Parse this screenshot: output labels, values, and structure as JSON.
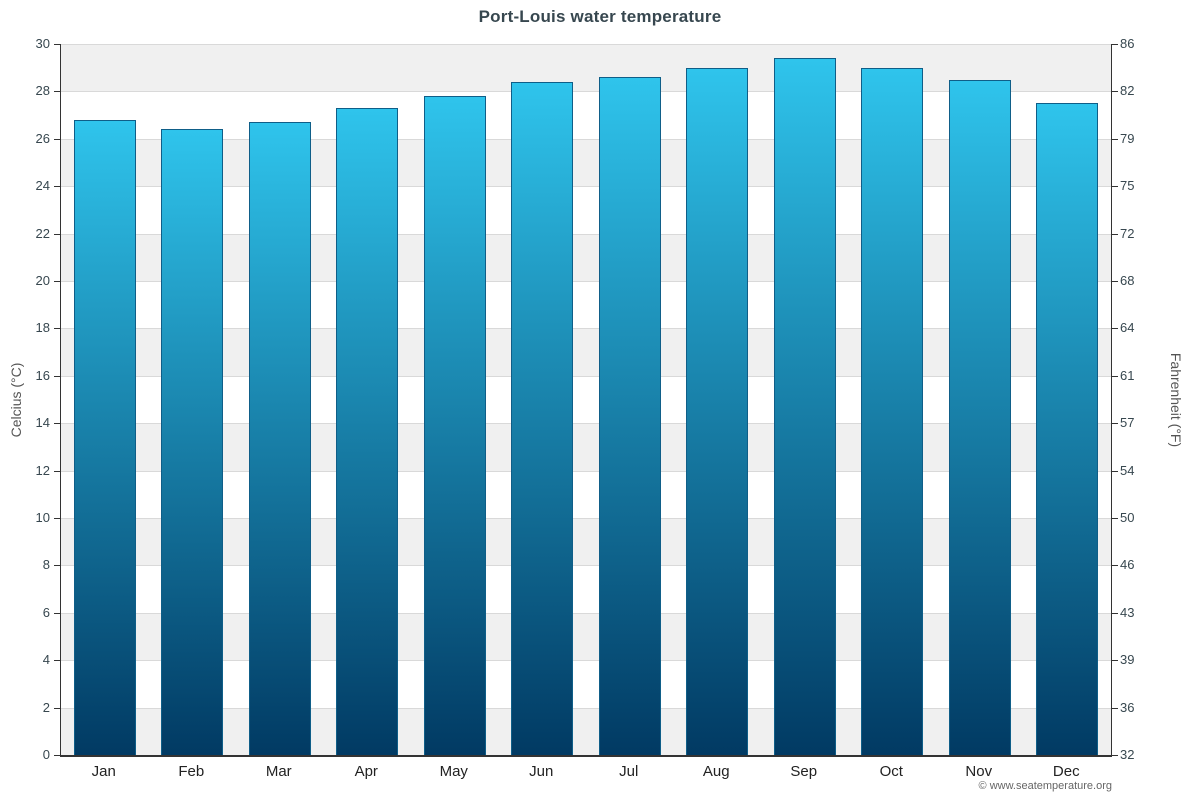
{
  "chart_data": {
    "type": "bar",
    "title": "Port-Louis water temperature",
    "categories": [
      "Jan",
      "Feb",
      "Mar",
      "Apr",
      "May",
      "Jun",
      "Jul",
      "Aug",
      "Sep",
      "Oct",
      "Nov",
      "Dec"
    ],
    "series": [
      {
        "name": "Water temperature (°C)",
        "values": [
          26.8,
          26.4,
          26.7,
          27.3,
          27.8,
          28.4,
          28.6,
          29.0,
          29.4,
          29.0,
          28.5,
          27.5
        ]
      }
    ],
    "ylabel_left": "Celcius (°C)",
    "ylabel_right": "Fahrenheit (°F)",
    "ylim": [
      0,
      30
    ],
    "yticks_celsius": [
      0,
      2,
      4,
      6,
      8,
      10,
      12,
      14,
      16,
      18,
      20,
      22,
      24,
      26,
      28,
      30
    ],
    "yticks_fahrenheit": [
      "32",
      "36",
      "39",
      "43",
      "46",
      "50",
      "54",
      "57",
      "61",
      "64",
      "68",
      "72",
      "75",
      "79",
      "82",
      "86"
    ],
    "grid": true,
    "legend": "none",
    "plot_bands_alternating": true
  },
  "colors": {
    "bar_gradient_top": "#2fc4ec",
    "bar_gradient_bottom": "#013a63",
    "bar_border": "#0f5e88",
    "band_fill": "#f0f0f0",
    "gridline": "#d9d9d9",
    "axis_line": "#333333",
    "title_text": "#37474f",
    "tick_text": "#37474f",
    "month_text": "#222222",
    "axis_label_text": "#555555",
    "credit_text": "#666666"
  },
  "footer": {
    "credit": "© www.seatemperature.org"
  }
}
